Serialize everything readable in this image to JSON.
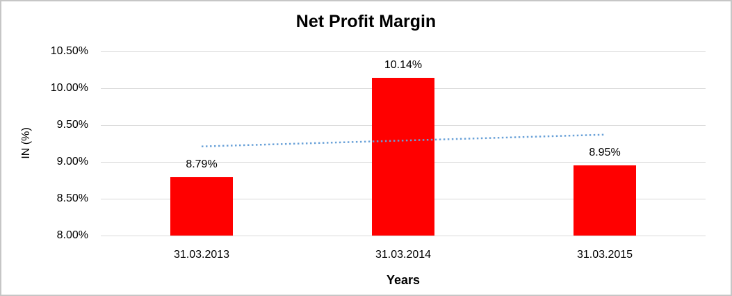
{
  "chart_data": {
    "type": "bar",
    "title": "Net Profit Margin",
    "xlabel": "Years",
    "ylabel": "IN (%)",
    "categories": [
      "31.03.2013",
      "31.03.2014",
      "31.03.2015"
    ],
    "values": [
      8.79,
      10.14,
      8.95
    ],
    "data_labels": [
      "8.79%",
      "10.14%",
      "8.95%"
    ],
    "ytick_labels": [
      "8.00%",
      "8.50%",
      "9.00%",
      "9.50%",
      "10.00%",
      "10.50%"
    ],
    "ylim": [
      8.0,
      10.5
    ],
    "ytick_step": 0.5,
    "grid": true,
    "legend_position": "none",
    "bar_color": "#FF0000",
    "trendline": {
      "type": "linear",
      "style": "dotted",
      "color": "#69A1D8",
      "start_value": 9.21,
      "end_value": 9.37
    },
    "colors": {
      "gridline": "#D9D9D9",
      "text": "#000000",
      "frame_border": "#C6C6C6",
      "background": "#FFFFFF"
    }
  }
}
